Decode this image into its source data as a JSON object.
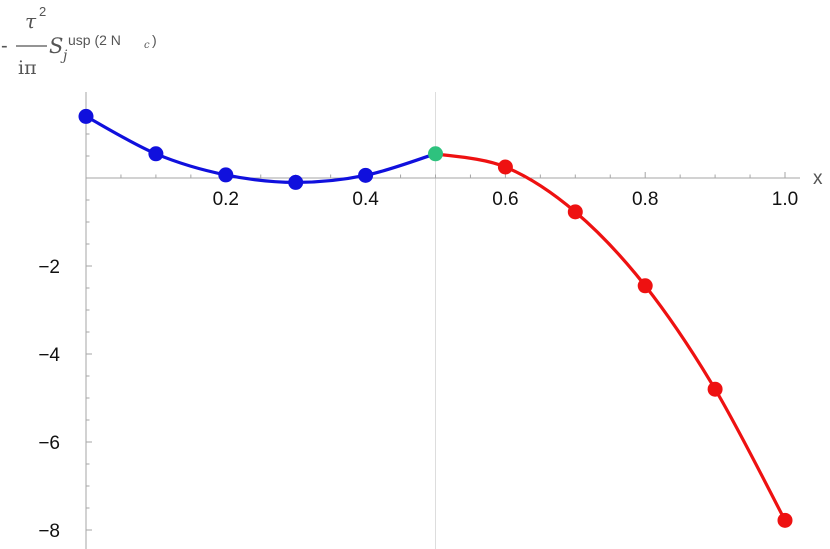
{
  "chart_data": {
    "type": "line",
    "xlabel": "x",
    "ylabel": {
      "prefix": "-",
      "numerator": "τ",
      "numerator_power": "2",
      "denominator": "iπ",
      "symbol": "S",
      "subscript": "j",
      "superscript": "usp (2 N",
      "superscript_sub": "c",
      "superscript_close": ")"
    },
    "xlim": [
      0,
      1.0
    ],
    "ylim": [
      -8.2,
      1.2
    ],
    "x_ticks": [
      {
        "value": 0.2,
        "label": "0.2"
      },
      {
        "value": 0.4,
        "label": "0.4"
      },
      {
        "value": 0.6,
        "label": "0.6"
      },
      {
        "value": 0.8,
        "label": "0.8"
      },
      {
        "value": 1.0,
        "label": "1.0"
      }
    ],
    "y_ticks": [
      {
        "value": -2,
        "label": "−2"
      },
      {
        "value": -4,
        "label": "−4"
      },
      {
        "value": -6,
        "label": "−6"
      },
      {
        "value": -8,
        "label": "−8"
      }
    ],
    "reference_line_x": 0.5,
    "series": [
      {
        "color": "#1010dd",
        "x": [
          0.0,
          0.1,
          0.2,
          0.3,
          0.4,
          0.5
        ],
        "y": [
          1.4,
          0.55,
          0.07,
          -0.1,
          0.06,
          0.55
        ]
      },
      {
        "color": "#ee1111",
        "x": [
          0.5,
          0.6,
          0.7,
          0.8,
          0.9,
          1.0
        ],
        "y": [
          0.55,
          0.25,
          -0.77,
          -2.45,
          -4.8,
          -7.78
        ]
      }
    ],
    "highlight_point": {
      "x": 0.5,
      "y": 0.55,
      "color": "#2ec27e"
    }
  }
}
